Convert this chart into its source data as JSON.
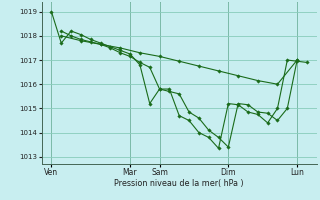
{
  "bg_color": "#c8eef0",
  "grid_color": "#88ccbb",
  "line_color": "#1a6b1a",
  "xlabel": "Pression niveau de la mer( hPa )",
  "ylim": [
    1012.7,
    1019.4
  ],
  "yticks": [
    1013,
    1014,
    1015,
    1016,
    1017,
    1018,
    1019
  ],
  "xlim": [
    0,
    28
  ],
  "day_labels": [
    "Ven",
    "Mar",
    "Sam",
    "Dim",
    "Lun"
  ],
  "day_positions": [
    1,
    9,
    12,
    19,
    26
  ],
  "series1_x": [
    1,
    2,
    3,
    4,
    5,
    6,
    7,
    8,
    9,
    10,
    11,
    12,
    13,
    14,
    15,
    16,
    17,
    18,
    19,
    20,
    21,
    22,
    23,
    24,
    25,
    26,
    27
  ],
  "series1_y": [
    1019.0,
    1017.7,
    1018.2,
    1018.05,
    1017.85,
    1017.7,
    1017.55,
    1017.4,
    1017.25,
    1016.8,
    1015.2,
    1015.8,
    1015.8,
    1014.7,
    1014.5,
    1014.0,
    1013.8,
    1013.35,
    1015.2,
    1015.15,
    1014.85,
    1014.75,
    1014.4,
    1015.0,
    1017.0,
    1016.95,
    1016.9
  ],
  "series2_x": [
    2,
    3,
    4,
    5,
    6,
    7,
    8,
    9,
    10,
    11,
    12,
    13,
    14,
    15,
    16,
    17,
    18,
    19,
    20,
    21,
    22,
    23,
    24,
    25,
    26
  ],
  "series2_y": [
    1018.2,
    1018.0,
    1017.85,
    1017.75,
    1017.65,
    1017.5,
    1017.3,
    1017.15,
    1016.9,
    1016.7,
    1015.8,
    1015.7,
    1015.6,
    1014.85,
    1014.6,
    1014.1,
    1013.8,
    1013.4,
    1015.2,
    1015.15,
    1014.85,
    1014.8,
    1014.5,
    1015.0,
    1017.0
  ],
  "series3_x": [
    2,
    4,
    6,
    8,
    10,
    12,
    14,
    16,
    18,
    20,
    22,
    24,
    26
  ],
  "series3_y": [
    1018.0,
    1017.8,
    1017.65,
    1017.5,
    1017.3,
    1017.15,
    1016.95,
    1016.75,
    1016.55,
    1016.35,
    1016.15,
    1016.0,
    1017.0
  ]
}
